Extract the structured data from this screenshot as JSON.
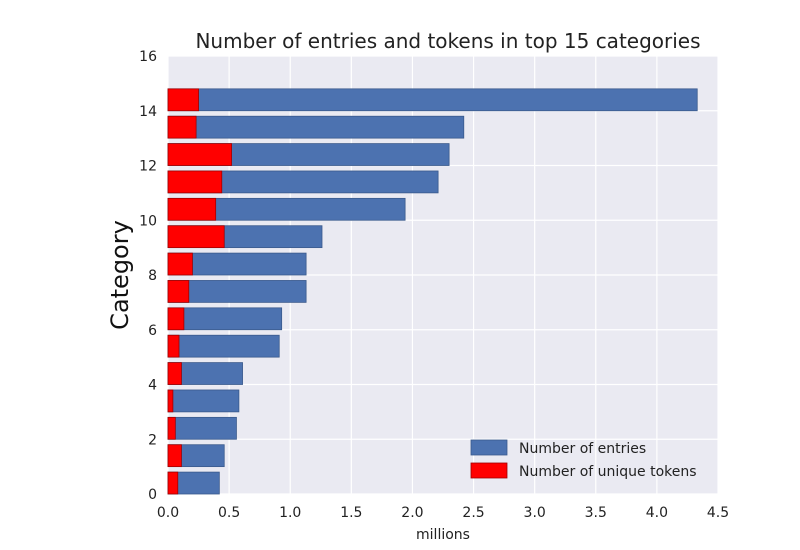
{
  "chart_data": {
    "type": "bar",
    "orientation": "horizontal",
    "title": "Number of entries and tokens in top 15 categories",
    "xlabel": "millions",
    "ylabel": "Category",
    "xlim": [
      0,
      4.5
    ],
    "ylim": [
      0,
      16
    ],
    "x_ticks": [
      "0.0",
      "0.5",
      "1.0",
      "1.5",
      "2.0",
      "2.5",
      "3.0",
      "3.5",
      "4.0",
      "4.5"
    ],
    "y_ticks": [
      "0",
      "2",
      "4",
      "6",
      "8",
      "10",
      "12",
      "14",
      "16"
    ],
    "grid": true,
    "legend_position": "lower-right",
    "categories": [
      0,
      1,
      2,
      3,
      4,
      5,
      6,
      7,
      8,
      9,
      10,
      11,
      12,
      13,
      14
    ],
    "series": [
      {
        "name": "Number of entries",
        "color": "#4c72b0",
        "values": [
          0.42,
          0.46,
          0.56,
          0.58,
          0.61,
          0.91,
          0.93,
          1.13,
          1.13,
          1.26,
          1.94,
          2.21,
          2.3,
          2.42,
          4.33
        ]
      },
      {
        "name": "Number of unique tokens",
        "color": "#ff0000",
        "values": [
          0.08,
          0.11,
          0.06,
          0.04,
          0.11,
          0.09,
          0.13,
          0.17,
          0.2,
          0.46,
          0.39,
          0.44,
          0.52,
          0.23,
          0.25
        ]
      }
    ]
  },
  "colors": {
    "plot_background": "#eaeaf2",
    "grid": "#ffffff"
  }
}
